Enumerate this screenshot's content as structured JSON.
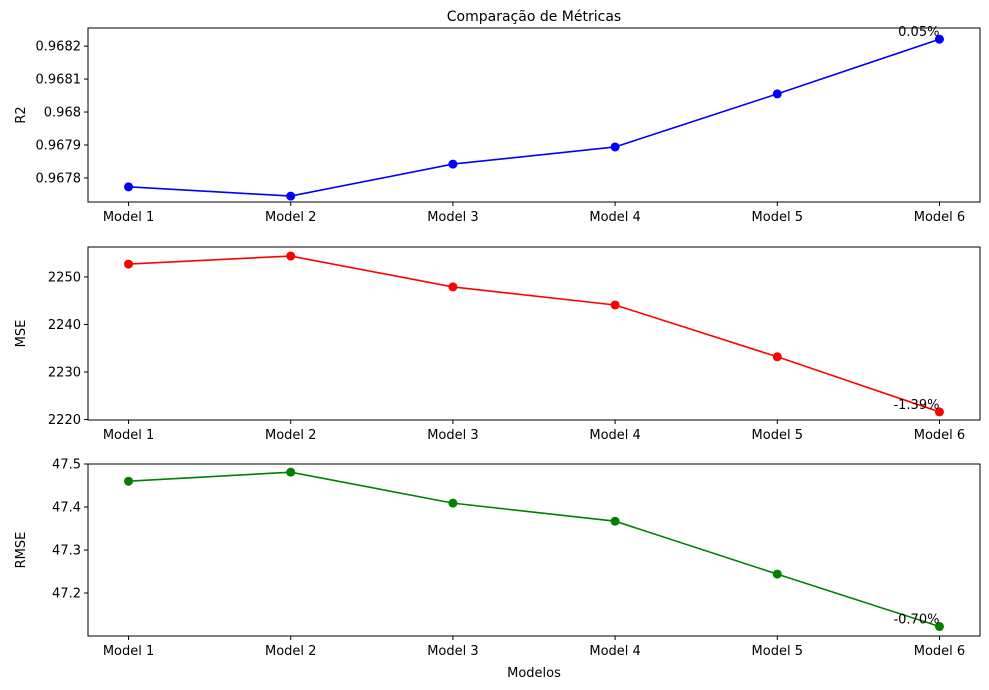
{
  "chart_data": [
    {
      "type": "line",
      "title": "Comparação de Métricas",
      "ylabel": "R2",
      "categories": [
        "Model 1",
        "Model 2",
        "Model 3",
        "Model 4",
        "Model 5",
        "Model 6"
      ],
      "values": [
        0.967773,
        0.967745,
        0.967842,
        0.967894,
        0.968055,
        0.968221
      ],
      "color": "#0000ff",
      "annotation": "0.05%",
      "ylim": [
        0.967727,
        0.968255
      ],
      "yticks": [
        0.9678,
        0.9679,
        0.968,
        0.9681,
        0.9682
      ]
    },
    {
      "type": "line",
      "ylabel": "MSE",
      "categories": [
        "Model 1",
        "Model 2",
        "Model 3",
        "Model 4",
        "Model 5",
        "Model 6"
      ],
      "values": [
        2252.7,
        2254.4,
        2247.9,
        2244.1,
        2233.2,
        2221.6
      ],
      "color": "#ff0000",
      "annotation": "-1.39%",
      "ylim": [
        2219.9,
        2256.3
      ],
      "yticks": [
        2220,
        2230,
        2240,
        2250
      ]
    },
    {
      "type": "line",
      "ylabel": "RMSE",
      "xlabel": "Modelos",
      "categories": [
        "Model 1",
        "Model 2",
        "Model 3",
        "Model 4",
        "Model 5",
        "Model 6"
      ],
      "values": [
        47.46,
        47.481,
        47.409,
        47.367,
        47.244,
        47.122
      ],
      "color": "#008000",
      "annotation": "-0.70%",
      "ylim": [
        47.1,
        47.5
      ],
      "yticks": [
        47.2,
        47.3,
        47.4,
        47.5
      ]
    }
  ]
}
